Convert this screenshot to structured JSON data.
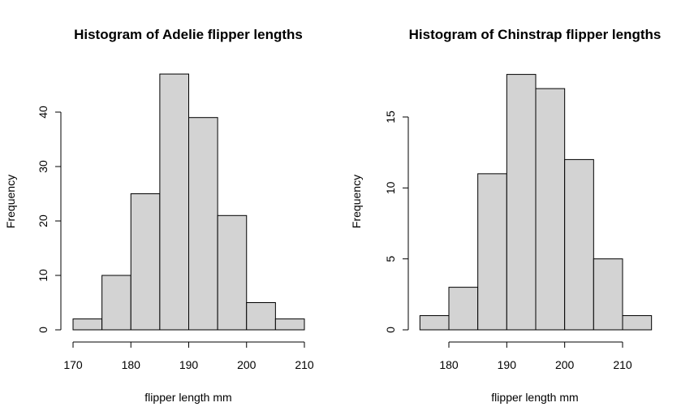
{
  "chart_data": [
    {
      "type": "bar",
      "title": "Histogram of Adelie flipper lengths",
      "xlabel": "flipper length mm",
      "ylabel": "Frequency",
      "bins": [
        [
          170,
          175
        ],
        [
          175,
          180
        ],
        [
          180,
          185
        ],
        [
          185,
          190
        ],
        [
          190,
          195
        ],
        [
          195,
          200
        ],
        [
          200,
          205
        ],
        [
          205,
          210
        ]
      ],
      "values": [
        2,
        10,
        25,
        47,
        39,
        21,
        5,
        2
      ],
      "xticks": [
        170,
        180,
        190,
        200,
        210
      ],
      "yticks": [
        0,
        10,
        20,
        30,
        40
      ],
      "xlim": [
        170,
        210
      ],
      "ylim": [
        0,
        40
      ],
      "grid": false,
      "colors": {
        "bar_fill": "#d3d3d3",
        "bar_edge": "#000000"
      }
    },
    {
      "type": "bar",
      "title": "Histogram of Chinstrap flipper lengths",
      "xlabel": "flipper length mm",
      "ylabel": "Frequency",
      "bins": [
        [
          175,
          180
        ],
        [
          180,
          185
        ],
        [
          185,
          190
        ],
        [
          190,
          195
        ],
        [
          195,
          200
        ],
        [
          200,
          205
        ],
        [
          205,
          210
        ],
        [
          210,
          215
        ]
      ],
      "values": [
        1,
        3,
        11,
        18,
        17,
        12,
        5,
        1
      ],
      "xticks": [
        180,
        190,
        200,
        210
      ],
      "yticks": [
        0,
        5,
        10,
        15
      ],
      "xlim": [
        180,
        210
      ],
      "ylim": [
        0,
        15
      ],
      "grid": false,
      "colors": {
        "bar_fill": "#d3d3d3",
        "bar_edge": "#000000"
      }
    }
  ]
}
